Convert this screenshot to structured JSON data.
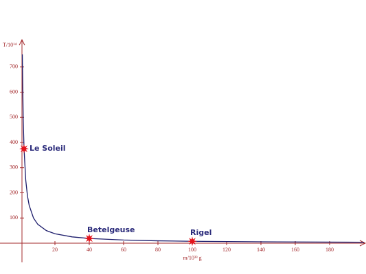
{
  "chart_data": {
    "type": "line",
    "y_label": "T/10¹⁴",
    "x_label": "m/10³³ g",
    "xlim": [
      0,
      200
    ],
    "ylim": [
      0,
      800
    ],
    "xticks": [
      20,
      40,
      60,
      80,
      100,
      120,
      140,
      160,
      180
    ],
    "yticks": [
      100,
      200,
      300,
      400,
      500,
      600,
      700
    ],
    "axis_color": "#a3282b",
    "curve": {
      "color": "#1c1c6b",
      "x": [
        1,
        1.5,
        2,
        3,
        4,
        5,
        7.5,
        10,
        15,
        20,
        30,
        40,
        60,
        80,
        100,
        150,
        200
      ],
      "y": [
        750,
        500,
        375,
        250,
        187.5,
        150,
        100,
        75,
        50,
        37.5,
        25,
        18.75,
        12.5,
        9.4,
        7.5,
        5,
        3.75
      ]
    },
    "points": [
      {
        "label": "Le Soleil",
        "x": 2,
        "y": 375
      },
      {
        "label": "Betelgeuse",
        "x": 40,
        "y": 18.75
      },
      {
        "label": "Rigel",
        "x": 100,
        "y": 7.5
      }
    ],
    "point_color": "#e3141c",
    "label_color": "#2a2a7a"
  }
}
